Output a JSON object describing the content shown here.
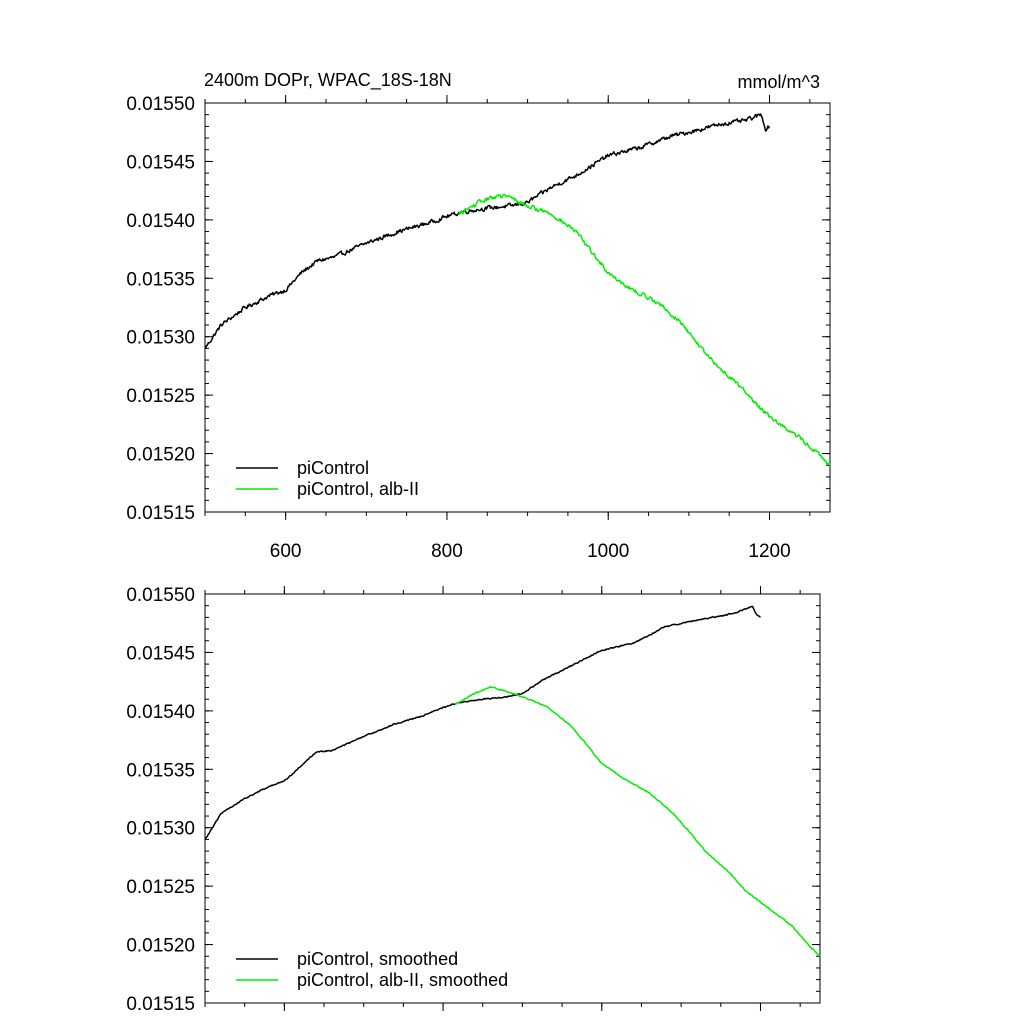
{
  "chart_data": [
    {
      "type": "line",
      "title": "2400m DOPr, WPAC_18S-18N",
      "units": "mmol/m^3",
      "xlabel": "",
      "ylabel": "",
      "xlim": [
        500,
        1275
      ],
      "ylim": [
        0.01515,
        0.0155
      ],
      "x_ticks": [
        600,
        800,
        1000,
        1200
      ],
      "x_tick_labels": [
        "600",
        "800",
        "1000",
        "1200"
      ],
      "y_ticks": [
        0.01515,
        0.0152,
        0.01525,
        0.0153,
        0.01535,
        0.0154,
        0.01545,
        0.0155
      ],
      "y_tick_labels": [
        "0.01515",
        "0.01520",
        "0.01525",
        "0.01530",
        "0.01535",
        "0.01540",
        "0.01545",
        "0.01550"
      ],
      "legend_position": "bottom-left",
      "series": [
        {
          "name": "piControl",
          "color": "#000000",
          "noise": "high",
          "x": [
            500,
            520,
            550,
            580,
            600,
            620,
            640,
            660,
            700,
            740,
            780,
            800,
            820,
            850,
            880,
            900,
            930,
            960,
            1000,
            1040,
            1080,
            1100,
            1140,
            1170,
            1190,
            1195,
            1200
          ],
          "values": [
            0.01529,
            0.01531,
            0.015325,
            0.015335,
            0.01534,
            0.015355,
            0.015365,
            0.015368,
            0.01538,
            0.01539,
            0.015398,
            0.015403,
            0.015407,
            0.01541,
            0.015412,
            0.015415,
            0.015428,
            0.015438,
            0.015455,
            0.015462,
            0.015472,
            0.015475,
            0.015482,
            0.015485,
            0.01549,
            0.015478,
            0.01548
          ]
        },
        {
          "name": "piControl, alb-II",
          "color": "#00ee00",
          "noise": "high",
          "x": [
            815,
            840,
            860,
            875,
            900,
            930,
            960,
            980,
            1000,
            1030,
            1060,
            1090,
            1110,
            1130,
            1160,
            1180,
            1200,
            1220,
            1240,
            1260,
            1275
          ],
          "values": [
            0.015405,
            0.015415,
            0.01542,
            0.01542,
            0.015412,
            0.015405,
            0.01539,
            0.015372,
            0.015355,
            0.01534,
            0.01533,
            0.015312,
            0.015295,
            0.015278,
            0.01526,
            0.015245,
            0.015232,
            0.015222,
            0.015212,
            0.0152,
            0.01519
          ]
        }
      ]
    },
    {
      "type": "line",
      "title": "",
      "xlabel": "",
      "ylabel": "",
      "xlim": [
        500,
        1275
      ],
      "ylim": [
        0.01515,
        0.0155
      ],
      "x_ticks": [
        600,
        800,
        1000,
        1200
      ],
      "y_ticks": [
        0.01515,
        0.0152,
        0.01525,
        0.0153,
        0.01535,
        0.0154,
        0.01545,
        0.0155
      ],
      "y_tick_labels": [
        "0.01515",
        "0.01520",
        "0.01525",
        "0.01530",
        "0.01535",
        "0.01540",
        "0.01545",
        "0.01550"
      ],
      "legend_position": "bottom-left",
      "series": [
        {
          "name": "piControl, smoothed",
          "color": "#000000",
          "noise": "low",
          "x": [
            500,
            520,
            550,
            580,
            600,
            620,
            640,
            660,
            700,
            740,
            780,
            800,
            820,
            850,
            880,
            900,
            930,
            960,
            1000,
            1040,
            1080,
            1100,
            1140,
            1170,
            1190,
            1195,
            1200
          ],
          "values": [
            0.01529,
            0.015312,
            0.015325,
            0.015335,
            0.01534,
            0.015352,
            0.015365,
            0.015366,
            0.015378,
            0.015389,
            0.015397,
            0.015403,
            0.015407,
            0.01541,
            0.015412,
            0.015415,
            0.015428,
            0.015438,
            0.015452,
            0.015458,
            0.015472,
            0.015475,
            0.01548,
            0.015484,
            0.01549,
            0.015482,
            0.01548
          ]
        },
        {
          "name": "piControl, alb-II, smoothed",
          "color": "#00ee00",
          "noise": "low",
          "x": [
            815,
            840,
            860,
            875,
            900,
            930,
            960,
            980,
            1000,
            1030,
            1060,
            1090,
            1110,
            1130,
            1160,
            1180,
            1200,
            1220,
            1240,
            1260,
            1275
          ],
          "values": [
            0.015405,
            0.015415,
            0.01542,
            0.015418,
            0.015412,
            0.015404,
            0.015388,
            0.015372,
            0.015355,
            0.015341,
            0.01533,
            0.015312,
            0.015297,
            0.01528,
            0.015262,
            0.015247,
            0.015236,
            0.015226,
            0.015216,
            0.0152,
            0.01519
          ]
        }
      ]
    }
  ]
}
